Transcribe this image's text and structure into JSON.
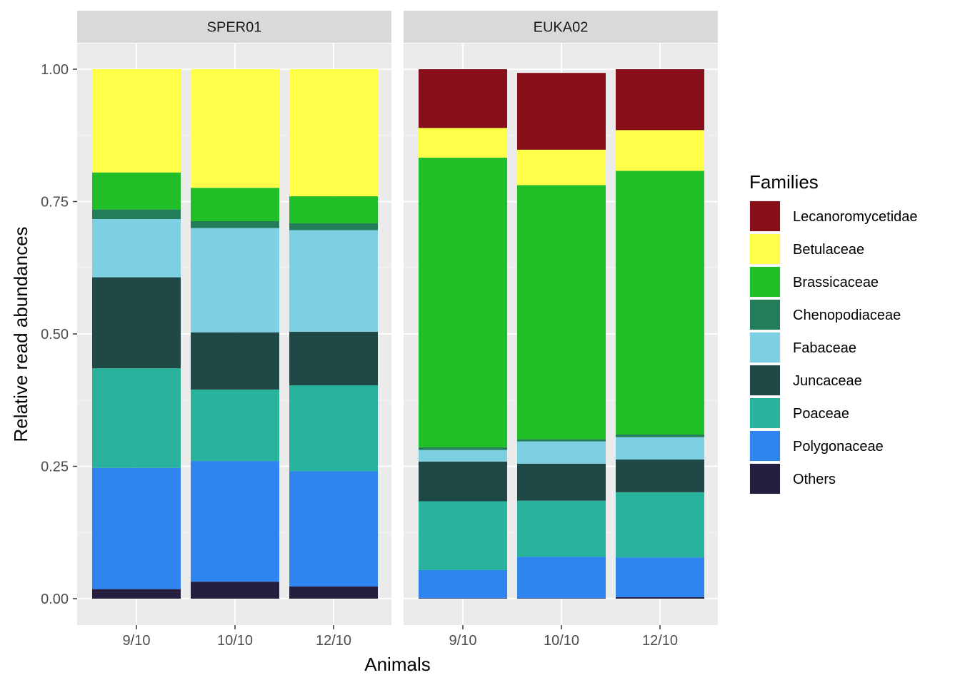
{
  "chart_data": {
    "type": "bar",
    "stacked": true,
    "xlabel": "Animals",
    "ylabel": "Relative read abundances",
    "ylim": [
      0,
      1
    ],
    "yticks": [
      "0.00",
      "0.25",
      "0.50",
      "0.75",
      "1.00"
    ],
    "grid": true,
    "legend_position": "right",
    "legend_title": "Families",
    "families": [
      {
        "name": "Lecanoromycetidae",
        "color": "#860f19"
      },
      {
        "name": "Betulaceae",
        "color": "#ffff4a"
      },
      {
        "name": "Brassicaceae",
        "color": "#20bf28"
      },
      {
        "name": "Chenopodiaceae",
        "color": "#227d58"
      },
      {
        "name": "Fabaceae",
        "color": "#7dcfe2"
      },
      {
        "name": "Juncaceae",
        "color": "#1f4946"
      },
      {
        "name": "Poaceae",
        "color": "#2ab39c"
      },
      {
        "name": "Polygonaceae",
        "color": "#2e85f0"
      },
      {
        "name": "Others",
        "color": "#251e3f"
      }
    ],
    "panels": [
      {
        "name": "SPER01",
        "categories": [
          "9/10",
          "10/10",
          "12/10"
        ],
        "series": [
          {
            "name": "Lecanoromycetidae",
            "values": [
              0.0,
              0.0,
              0.0
            ]
          },
          {
            "name": "Betulaceae",
            "values": [
              0.195,
              0.224,
              0.24
            ]
          },
          {
            "name": "Brassicaceae",
            "values": [
              0.07,
              0.063,
              0.051
            ]
          },
          {
            "name": "Chenopodiaceae",
            "values": [
              0.018,
              0.013,
              0.013
            ]
          },
          {
            "name": "Fabaceae",
            "values": [
              0.11,
              0.197,
              0.192
            ]
          },
          {
            "name": "Juncaceae",
            "values": [
              0.172,
              0.108,
              0.101
            ]
          },
          {
            "name": "Poaceae",
            "values": [
              0.188,
              0.135,
              0.162
            ]
          },
          {
            "name": "Polygonaceae",
            "values": [
              0.229,
              0.228,
              0.218
            ]
          },
          {
            "name": "Others",
            "values": [
              0.018,
              0.032,
              0.023
            ]
          }
        ]
      },
      {
        "name": "EUKA02",
        "categories": [
          "9/10",
          "10/10",
          "12/10"
        ],
        "series": [
          {
            "name": "Lecanoromycetidae",
            "values": [
              0.111,
              0.145,
              0.115
            ]
          },
          {
            "name": "Betulaceae",
            "values": [
              0.056,
              0.067,
              0.077
            ]
          },
          {
            "name": "Brassicaceae",
            "values": [
              0.547,
              0.48,
              0.498
            ]
          },
          {
            "name": "Chenopodiaceae",
            "values": [
              0.005,
              0.004,
              0.005
            ]
          },
          {
            "name": "Fabaceae",
            "values": [
              0.022,
              0.042,
              0.042
            ]
          },
          {
            "name": "Juncaceae",
            "values": [
              0.075,
              0.07,
              0.062
            ]
          },
          {
            "name": "Poaceae",
            "values": [
              0.13,
              0.106,
              0.123
            ]
          },
          {
            "name": "Polygonaceae",
            "values": [
              0.053,
              0.078,
              0.075
            ]
          },
          {
            "name": "Others",
            "values": [
              0.001,
              0.001,
              0.003
            ]
          }
        ]
      }
    ]
  }
}
